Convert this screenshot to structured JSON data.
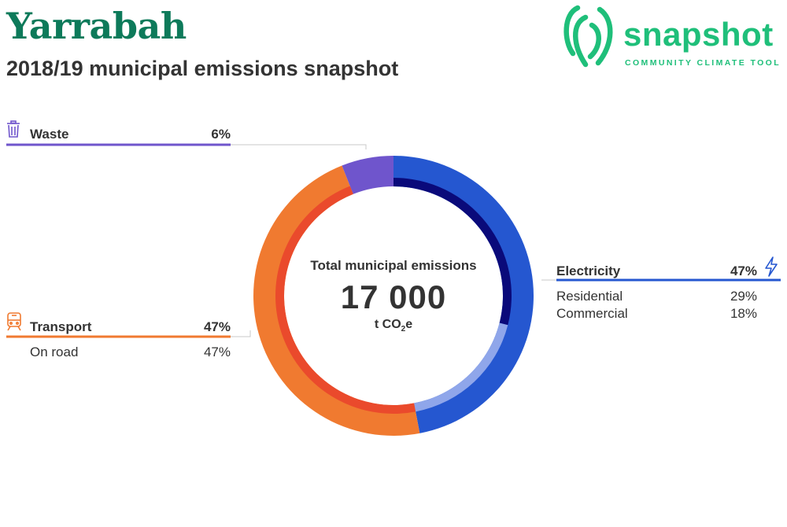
{
  "header": {
    "title": "Yarrabah",
    "subtitle": "2018/19 municipal emissions snapshot"
  },
  "logo": {
    "word": "snapshot",
    "tagline": "COMMUNITY CLIMATE TOOL"
  },
  "center": {
    "title": "Total municipal emissions",
    "value": "17 000",
    "unit_main": "t CO",
    "unit_sub": "2",
    "unit_end": "e"
  },
  "icons": {
    "waste": "trash-can-icon",
    "transport": "train-icon",
    "electricity": "lightning-bolt-icon"
  },
  "colors": {
    "brand_green": "#0d7a5a",
    "logo_green": "#1fbf7a",
    "waste": "#6f55cc",
    "transport": "#f07a30",
    "transport_inner": "#ea4a2c",
    "electricity": "#2557d0",
    "residential": "#0a0a7a",
    "commercial": "#8fa6ea"
  },
  "chart_data": {
    "type": "pie",
    "variant": "donut",
    "title": "Total municipal emissions",
    "total": 17000,
    "total_label": "17 000",
    "unit": "t CO2e",
    "categories": [
      {
        "name": "Electricity",
        "value_pct": 47,
        "label": "47%",
        "subcategories": [
          {
            "name": "Residential",
            "value_pct": 29,
            "label": "29%"
          },
          {
            "name": "Commercial",
            "value_pct": 18,
            "label": "18%"
          }
        ]
      },
      {
        "name": "Transport",
        "value_pct": 47,
        "label": "47%",
        "subcategories": [
          {
            "name": "On road",
            "value_pct": 47,
            "label": "47%"
          }
        ]
      },
      {
        "name": "Waste",
        "value_pct": 6,
        "label": "6%",
        "subcategories": []
      }
    ]
  }
}
